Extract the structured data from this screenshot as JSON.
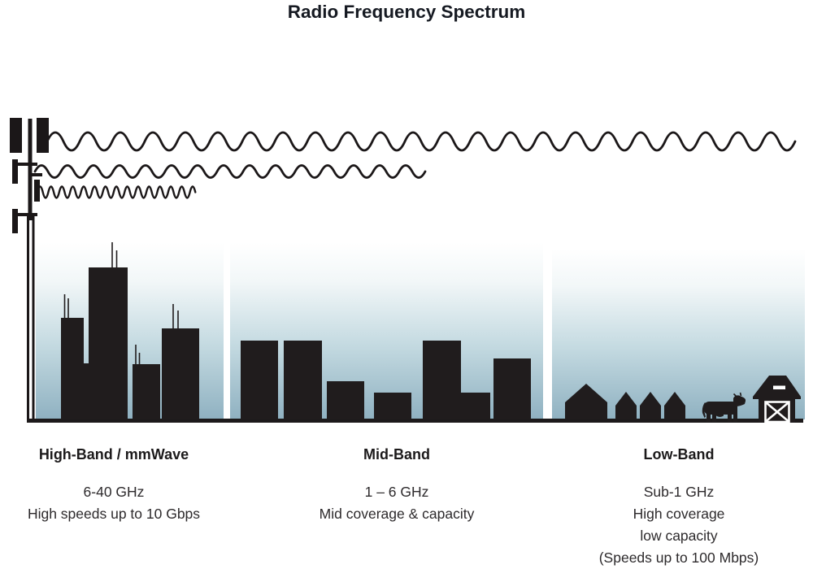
{
  "title": "Radio Frequency Spectrum",
  "colors": {
    "silhouette": "#201c1d",
    "wave_stroke": "#1b1718",
    "sky_top": "#ffffff",
    "sky_bottom": "#8fb1c1",
    "text": "#2d2a2c"
  },
  "bands": [
    {
      "id": "high",
      "name": "High-Band / mmWave",
      "range": "6-40 GHz",
      "lines": [
        "High speeds up to 10 Gbps"
      ],
      "scene": "dense-city-skyscrapers"
    },
    {
      "id": "mid",
      "name": "Mid-Band",
      "range": "1 – 6 GHz",
      "lines": [
        "Mid coverage & capacity"
      ],
      "scene": "mid-rise-buildings"
    },
    {
      "id": "low",
      "name": "Low-Band",
      "range": "Sub-1 GHz",
      "lines": [
        "High coverage",
        "low capacity",
        "(Speeds up to 100 Mbps)"
      ],
      "scene": "rural-farm-houses-cow-barn"
    }
  ],
  "icons": {
    "tower": "cell-tower-icon",
    "wave_top": "long-wavelength-wave-icon",
    "wave_middle": "medium-wavelength-wave-icon",
    "wave_bottom": "short-wavelength-wave-icon"
  }
}
